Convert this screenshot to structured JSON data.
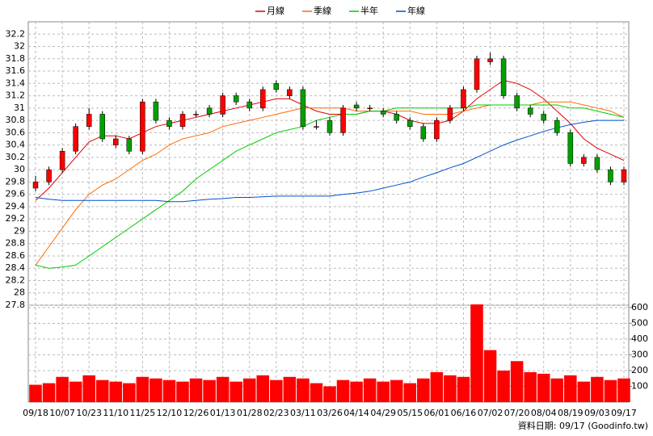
{
  "chart_data": {
    "type": "candlestick",
    "categories": [
      "09/18",
      null,
      "10/07",
      null,
      "10/23",
      null,
      "11/10",
      null,
      "11/25",
      null,
      "12/10",
      null,
      "12/26",
      null,
      "01/13",
      null,
      "01/28",
      null,
      "02/23",
      null,
      "03/11",
      null,
      "03/26",
      null,
      "04/14",
      null,
      "04/29",
      null,
      "05/15",
      null,
      "06/01",
      null,
      "06/16",
      null,
      "07/02",
      null,
      "07/20",
      null,
      "08/04",
      null,
      "08/19",
      null,
      "09/03",
      null,
      "09/17"
    ],
    "candles": {
      "up_color": "#ff0000",
      "down_color": "#00a000",
      "open": [
        29.7,
        29.8,
        30.0,
        30.3,
        30.7,
        30.9,
        30.4,
        30.5,
        30.3,
        31.1,
        30.8,
        30.7,
        30.9,
        31.0,
        30.9,
        31.2,
        31.1,
        31.0,
        31.4,
        31.2,
        31.3,
        30.7,
        30.8,
        30.6,
        31.05,
        31.0,
        30.95,
        30.9,
        30.8,
        30.7,
        30.5,
        30.8,
        31.0,
        31.3,
        31.75,
        31.8,
        31.2,
        31.0,
        30.9,
        30.8,
        30.6,
        30.1,
        30.2,
        30.0,
        29.8
      ],
      "high": [
        29.9,
        30.05,
        30.35,
        30.75,
        31.0,
        30.95,
        30.55,
        30.55,
        31.15,
        31.15,
        30.85,
        30.95,
        30.95,
        31.05,
        31.25,
        31.25,
        31.15,
        31.35,
        31.45,
        31.35,
        31.35,
        30.8,
        30.85,
        31.05,
        31.1,
        31.05,
        31.0,
        30.95,
        30.85,
        30.75,
        30.85,
        31.05,
        31.35,
        31.85,
        31.9,
        31.85,
        31.25,
        31.05,
        30.95,
        30.85,
        30.65,
        30.25,
        30.25,
        30.05,
        30.05
      ],
      "low": [
        29.65,
        29.75,
        29.95,
        30.25,
        30.65,
        30.45,
        30.35,
        30.25,
        30.25,
        30.75,
        30.65,
        30.65,
        30.85,
        30.85,
        30.85,
        31.05,
        30.95,
        30.95,
        31.25,
        31.15,
        30.65,
        30.65,
        30.55,
        30.55,
        30.95,
        30.95,
        30.85,
        30.75,
        30.65,
        30.45,
        30.45,
        30.75,
        30.95,
        31.25,
        31.7,
        31.15,
        30.95,
        30.85,
        30.75,
        30.55,
        30.05,
        30.05,
        29.95,
        29.75,
        29.75
      ],
      "close": [
        29.8,
        30.0,
        30.3,
        30.7,
        30.9,
        30.5,
        30.5,
        30.3,
        31.1,
        30.8,
        30.7,
        30.9,
        30.9,
        30.9,
        31.2,
        31.1,
        31.0,
        31.3,
        31.3,
        31.3,
        30.7,
        30.7,
        30.6,
        31.0,
        31.0,
        31.0,
        30.9,
        30.8,
        30.7,
        30.5,
        30.8,
        31.0,
        31.3,
        31.8,
        31.8,
        31.2,
        31.0,
        30.9,
        30.8,
        30.6,
        30.1,
        30.2,
        30.0,
        29.8,
        30.0
      ]
    },
    "series": [
      {
        "name": "月線",
        "color": "#e00000",
        "values": [
          29.5,
          29.7,
          29.95,
          30.2,
          30.45,
          30.55,
          30.55,
          30.5,
          30.6,
          30.7,
          30.75,
          30.8,
          30.85,
          30.9,
          30.95,
          31.0,
          31.05,
          31.1,
          31.15,
          31.15,
          31.05,
          30.95,
          30.9,
          30.9,
          30.9,
          30.95,
          30.95,
          30.9,
          30.8,
          30.75,
          30.75,
          30.8,
          30.95,
          31.15,
          31.3,
          31.45,
          31.4,
          31.3,
          31.15,
          30.95,
          30.75,
          30.5,
          30.35,
          30.25,
          30.15
        ]
      },
      {
        "name": "季線",
        "color": "#ff6a00",
        "values": [
          28.45,
          28.75,
          29.05,
          29.35,
          29.6,
          29.75,
          29.85,
          30.0,
          30.15,
          30.25,
          30.4,
          30.5,
          30.55,
          30.6,
          30.7,
          30.75,
          30.8,
          30.85,
          30.9,
          30.95,
          31.0,
          31.0,
          31.0,
          31.0,
          30.95,
          30.95,
          30.95,
          30.95,
          30.95,
          30.9,
          30.9,
          30.9,
          30.95,
          31.0,
          31.05,
          31.05,
          31.05,
          31.05,
          31.1,
          31.1,
          31.1,
          31.05,
          31.0,
          30.95,
          30.85
        ]
      },
      {
        "name": "半年",
        "color": "#00cc00",
        "values": [
          28.45,
          28.4,
          28.42,
          28.45,
          28.6,
          28.75,
          28.9,
          29.05,
          29.2,
          29.35,
          29.5,
          29.65,
          29.85,
          30.0,
          30.15,
          30.3,
          30.4,
          30.5,
          30.6,
          30.65,
          30.7,
          30.8,
          30.85,
          30.9,
          30.9,
          30.95,
          30.95,
          31.0,
          31.0,
          31.0,
          31.0,
          31.0,
          31.0,
          31.05,
          31.05,
          31.05,
          31.05,
          31.05,
          31.05,
          31.05,
          31.0,
          31.0,
          30.95,
          30.9,
          30.85
        ]
      },
      {
        "name": "年線",
        "color": "#0050d0",
        "values": [
          29.55,
          29.52,
          29.5,
          29.5,
          29.5,
          29.5,
          29.5,
          29.5,
          29.5,
          29.5,
          29.48,
          29.48,
          29.5,
          29.52,
          29.53,
          29.55,
          29.55,
          29.56,
          29.57,
          29.57,
          29.57,
          29.57,
          29.57,
          29.6,
          29.62,
          29.65,
          29.7,
          29.75,
          29.8,
          29.88,
          29.95,
          30.03,
          30.1,
          30.2,
          30.3,
          30.4,
          30.48,
          30.55,
          30.62,
          30.68,
          30.73,
          30.77,
          30.8,
          30.8,
          30.8
        ]
      }
    ],
    "volume": {
      "color": "#ff0000",
      "axis": "y2",
      "values": [
        110,
        120,
        160,
        130,
        170,
        140,
        130,
        120,
        160,
        150,
        140,
        130,
        150,
        140,
        160,
        130,
        150,
        170,
        140,
        160,
        150,
        120,
        100,
        140,
        130,
        150,
        130,
        140,
        120,
        150,
        190,
        170,
        160,
        620,
        330,
        200,
        260,
        190,
        180,
        150,
        170,
        130,
        160,
        140,
        150
      ]
    },
    "ylim": [
      27.8,
      32.4
    ],
    "yticks": [
      27.8,
      28,
      28.2,
      28.4,
      28.6,
      28.8,
      29,
      29.2,
      29.4,
      29.6,
      29.8,
      30,
      30.2,
      30.4,
      30.6,
      30.8,
      31,
      31.2,
      31.4,
      31.6,
      31.8,
      32,
      32.2
    ],
    "y2lim": [
      0,
      615
    ],
    "y2ticks": [
      100,
      200,
      300,
      400,
      500,
      600
    ],
    "grid": true,
    "footer": "資料日期: 09/17 (Goodinfo.tw)"
  }
}
